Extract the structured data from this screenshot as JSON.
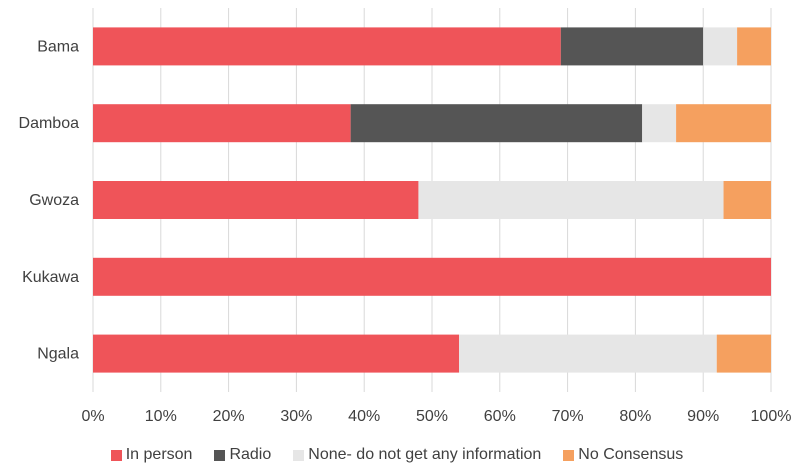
{
  "chart_data": {
    "type": "bar",
    "orientation": "horizontal",
    "stacked": "percent",
    "categories": [
      "Bama",
      "Damboa",
      "Gwoza",
      "Kukawa",
      "Ngala"
    ],
    "series": [
      {
        "name": "In person",
        "color": "#ef5459",
        "values": [
          69,
          38,
          48,
          100,
          54
        ]
      },
      {
        "name": "Radio",
        "color": "#555555",
        "values": [
          21,
          43,
          0,
          0,
          0
        ]
      },
      {
        "name": "None- do not get any information",
        "color": "#e6e6e6",
        "values": [
          5,
          5,
          45,
          0,
          38
        ]
      },
      {
        "name": "No Consensus",
        "color": "#f5a05f",
        "values": [
          5,
          14,
          7,
          0,
          8
        ]
      }
    ],
    "xlim": [
      0,
      100
    ],
    "x_ticks": [
      "0%",
      "10%",
      "20%",
      "30%",
      "40%",
      "50%",
      "60%",
      "70%",
      "80%",
      "90%",
      "100%"
    ],
    "grid": "vertical",
    "legend_position": "bottom"
  }
}
